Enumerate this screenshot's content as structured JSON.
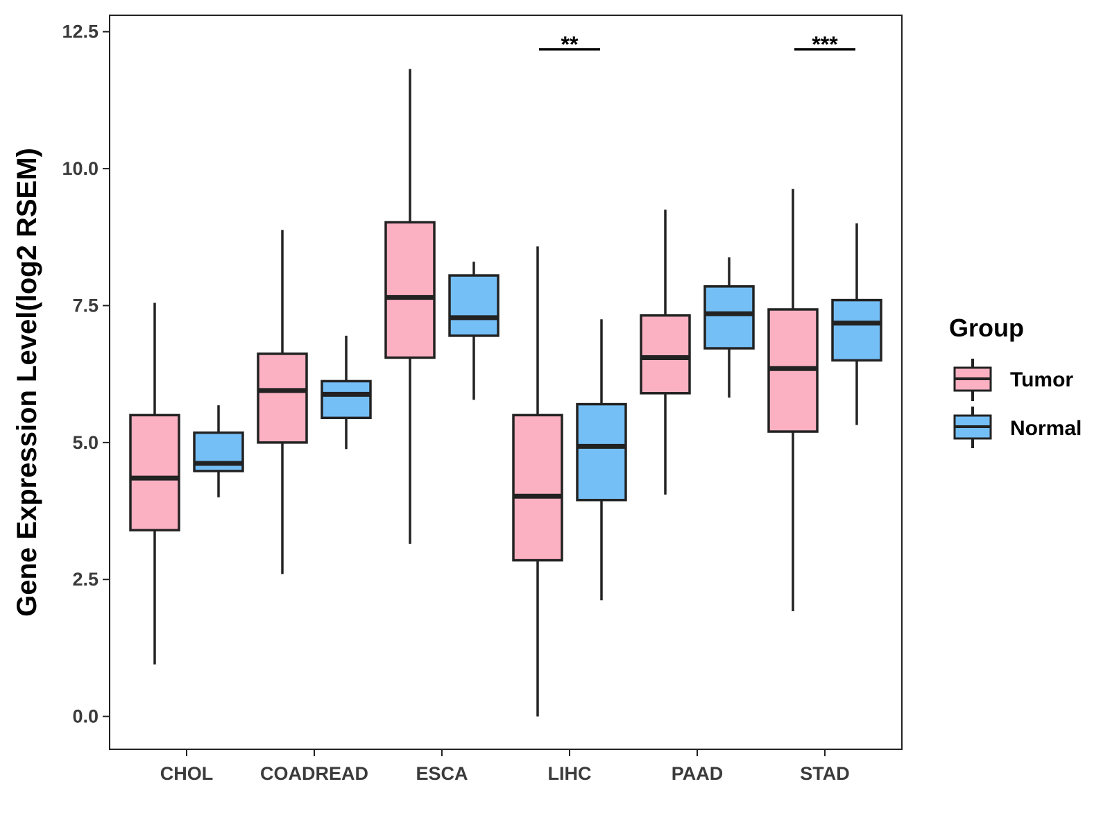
{
  "chart_data": {
    "type": "boxplot",
    "title": "",
    "xlabel": "",
    "ylabel": "Gene Expression Level(log2 RSEM)",
    "ylim": [
      -0.6,
      12.8
    ],
    "yticks": [
      "0.0",
      "2.5",
      "5.0",
      "7.5",
      "10.0",
      "12.5"
    ],
    "ytick_values": [
      0,
      2.5,
      5,
      7.5,
      10,
      12.5
    ],
    "grid": false,
    "legend_position": "right",
    "categories": [
      "CHOL",
      "COADREAD",
      "ESCA",
      "LIHC",
      "PAAD",
      "STAD"
    ],
    "legend": {
      "title": "Group",
      "items": [
        {
          "label": "Tumor",
          "color": "#FBB1C2"
        },
        {
          "label": "Normal",
          "color": "#75BFF7"
        }
      ]
    },
    "series": [
      {
        "name": "Tumor",
        "color": "#FBB1C2",
        "boxes": [
          {
            "category": "CHOL",
            "min": 0.95,
            "q1": 3.4,
            "median": 4.35,
            "q3": 5.5,
            "max": 7.55
          },
          {
            "category": "COADREAD",
            "min": 2.6,
            "q1": 5.0,
            "median": 5.95,
            "q3": 6.62,
            "max": 8.88
          },
          {
            "category": "ESCA",
            "min": 3.15,
            "q1": 6.55,
            "median": 7.65,
            "q3": 9.02,
            "max": 11.82
          },
          {
            "category": "LIHC",
            "min": 0.0,
            "q1": 2.85,
            "median": 4.02,
            "q3": 5.5,
            "max": 8.58
          },
          {
            "category": "PAAD",
            "min": 4.05,
            "q1": 5.9,
            "median": 6.55,
            "q3": 7.32,
            "max": 9.25
          },
          {
            "category": "STAD",
            "min": 1.92,
            "q1": 5.2,
            "median": 6.35,
            "q3": 7.43,
            "max": 9.63
          }
        ]
      },
      {
        "name": "Normal",
        "color": "#75BFF7",
        "boxes": [
          {
            "category": "CHOL",
            "min": 4.0,
            "q1": 4.48,
            "median": 4.62,
            "q3": 5.18,
            "max": 5.68
          },
          {
            "category": "COADREAD",
            "min": 4.88,
            "q1": 5.45,
            "median": 5.88,
            "q3": 6.12,
            "max": 6.95
          },
          {
            "category": "ESCA",
            "min": 5.78,
            "q1": 6.95,
            "median": 7.28,
            "q3": 8.05,
            "max": 8.3
          },
          {
            "category": "LIHC",
            "min": 2.12,
            "q1": 3.95,
            "median": 4.93,
            "q3": 5.7,
            "max": 7.25
          },
          {
            "category": "PAAD",
            "min": 5.82,
            "q1": 6.72,
            "median": 7.35,
            "q3": 7.85,
            "max": 8.38
          },
          {
            "category": "STAD",
            "min": 5.32,
            "q1": 6.5,
            "median": 7.18,
            "q3": 7.6,
            "max": 9.0
          }
        ]
      }
    ],
    "annotations": [
      {
        "category": "LIHC",
        "text": "**",
        "y": 12.18
      },
      {
        "category": "STAD",
        "text": "***",
        "y": 12.18
      }
    ]
  }
}
